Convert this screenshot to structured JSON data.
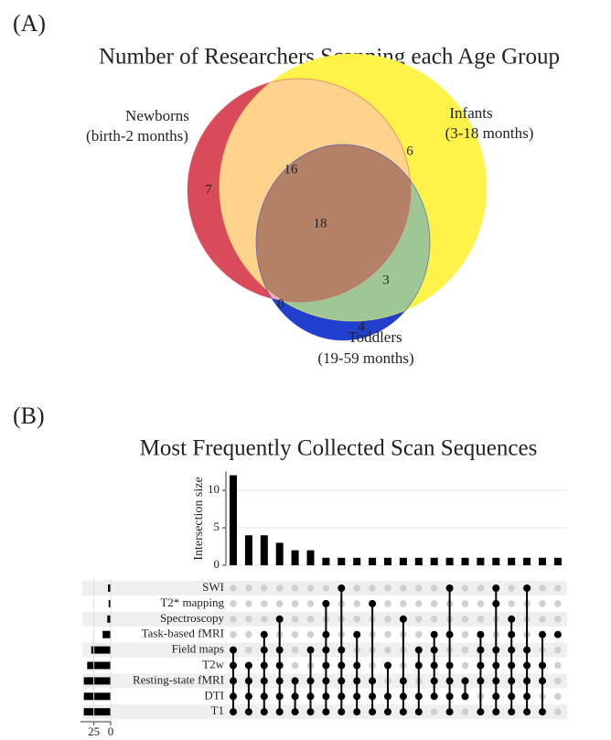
{
  "chart_data": [
    {
      "type": "venn",
      "panel": "(A)",
      "title": "Number of Researchers Scanning each Age Group",
      "sets": [
        {
          "name": "Newborns",
          "detail": "(birth-2 months)",
          "color": "#d94a5b"
        },
        {
          "name": "Infants",
          "detail": "(3-18 months)",
          "color": "#fff34a"
        },
        {
          "name": "Toddlers",
          "detail": "(19-59 months)",
          "color": "#1f3fcc"
        }
      ],
      "regions": [
        {
          "sets": [
            0
          ],
          "value": 7,
          "color": "#d94a5b"
        },
        {
          "sets": [
            1
          ],
          "value": 6,
          "color": "#fff34a"
        },
        {
          "sets": [
            2
          ],
          "value": 4,
          "color": "#1f3fcc"
        },
        {
          "sets": [
            0,
            1
          ],
          "value": 16,
          "color": "#fdd28c"
        },
        {
          "sets": [
            0,
            1,
            2
          ],
          "value": 18,
          "color": "#b48066"
        },
        {
          "sets": [
            1,
            2
          ],
          "value": 3,
          "color": "#9fc796"
        },
        {
          "sets": [
            0,
            2
          ],
          "value": 0,
          "color": "#e0a5d6"
        }
      ]
    },
    {
      "type": "upset",
      "panel": "(B)",
      "title": "Most Frequently Collected Scan Sequences",
      "ylabel": "Intersection size",
      "color": "#000000",
      "grid": true,
      "sets": [
        "SWI",
        "T2* mapping",
        "Spectroscopy",
        "Task-based fMRI",
        "Field maps",
        "T2w",
        "Resting-state fMRI",
        "DTI",
        "T1"
      ],
      "set_sizes": [
        4,
        3,
        5,
        12,
        29,
        35,
        40,
        40,
        40
      ],
      "xlim": [
        0,
        45
      ],
      "xticks": [
        25,
        0
      ],
      "ylim": [
        0,
        12.5
      ],
      "yticks": [
        0,
        5,
        10
      ],
      "intersections": [
        {
          "members": [
            4,
            5,
            6,
            7,
            8
          ],
          "size": 12
        },
        {
          "members": [
            5,
            6,
            7,
            8
          ],
          "size": 4
        },
        {
          "members": [
            3,
            4,
            5,
            6,
            7,
            8
          ],
          "size": 4
        },
        {
          "members": [
            2,
            4,
            5,
            6,
            7,
            8
          ],
          "size": 3
        },
        {
          "members": [
            6,
            7,
            8
          ],
          "size": 2
        },
        {
          "members": [
            4,
            6,
            7,
            8
          ],
          "size": 2
        },
        {
          "members": [
            1,
            3,
            4,
            5,
            6,
            7,
            8
          ],
          "size": 1
        },
        {
          "members": [
            0,
            4,
            5,
            6,
            7,
            8
          ],
          "size": 1
        },
        {
          "members": [
            3,
            5,
            6,
            7,
            8
          ],
          "size": 1
        },
        {
          "members": [
            1,
            6,
            7,
            8
          ],
          "size": 1
        },
        {
          "members": [
            5,
            7,
            8
          ],
          "size": 1
        },
        {
          "members": [
            2,
            6,
            7,
            8
          ],
          "size": 1
        },
        {
          "members": [
            4,
            5,
            7,
            8
          ],
          "size": 1
        },
        {
          "members": [
            3,
            4,
            5,
            6,
            7
          ],
          "size": 1
        },
        {
          "members": [
            0,
            3,
            5,
            6,
            7,
            8
          ],
          "size": 1
        },
        {
          "members": [
            6,
            7
          ],
          "size": 1
        },
        {
          "members": [
            3,
            4,
            5,
            6,
            8
          ],
          "size": 1
        },
        {
          "members": [
            0,
            1,
            4,
            5,
            6,
            7,
            8
          ],
          "size": 1
        },
        {
          "members": [
            2,
            3,
            4,
            5,
            6,
            7,
            8
          ],
          "size": 1
        },
        {
          "members": [
            0,
            4,
            5,
            6,
            7,
            8
          ],
          "size": 1
        },
        {
          "members": [
            3,
            5,
            6,
            8
          ],
          "size": 1
        },
        {
          "members": [
            3
          ],
          "size": 1
        }
      ]
    }
  ]
}
